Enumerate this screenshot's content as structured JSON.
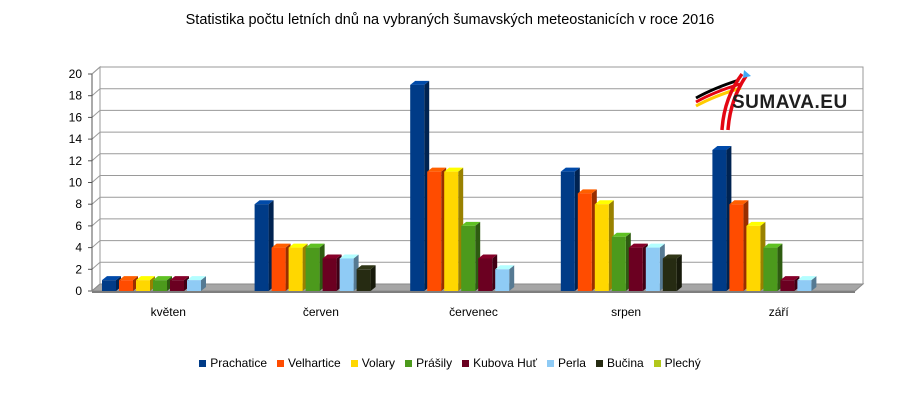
{
  "title": "Statistika počtu letních dnů na vybraných šumavských meteostanicích v roce 2016",
  "logo_text": "SUMAVA.EU",
  "chart_data": {
    "type": "bar",
    "title": "Statistika počtu letních dnů na vybraných šumavských meteostanicích v roce 2016",
    "categories": [
      "květen",
      "červen",
      "červenec",
      "srpen",
      "září"
    ],
    "ylim": [
      0,
      20
    ],
    "yticks": [
      0,
      2,
      4,
      6,
      8,
      10,
      12,
      14,
      16,
      18,
      20
    ],
    "grid": true,
    "legend_position": "bottom",
    "series": [
      {
        "name": "Prachatice",
        "color": "#003b87",
        "values": [
          1,
          8,
          19,
          11,
          13
        ]
      },
      {
        "name": "Velhartice",
        "color": "#ff4c00",
        "values": [
          1,
          4,
          11,
          9,
          8
        ]
      },
      {
        "name": "Volary",
        "color": "#ffd700",
        "values": [
          1,
          4,
          11,
          8,
          6
        ]
      },
      {
        "name": "Prášily",
        "color": "#4c9a1c",
        "values": [
          1,
          4,
          6,
          5,
          4
        ]
      },
      {
        "name": "Kubova Huť",
        "color": "#6b0021",
        "values": [
          1,
          3,
          3,
          4,
          1
        ]
      },
      {
        "name": "Perla",
        "color": "#8fcbf5",
        "values": [
          1,
          3,
          2,
          4,
          1
        ]
      },
      {
        "name": "Bučina",
        "color": "#262b12",
        "values": [
          0,
          2,
          0,
          3,
          0
        ]
      },
      {
        "name": "Plechý",
        "color": "#b2c71c",
        "values": [
          0,
          0,
          0,
          0,
          0
        ]
      }
    ]
  }
}
